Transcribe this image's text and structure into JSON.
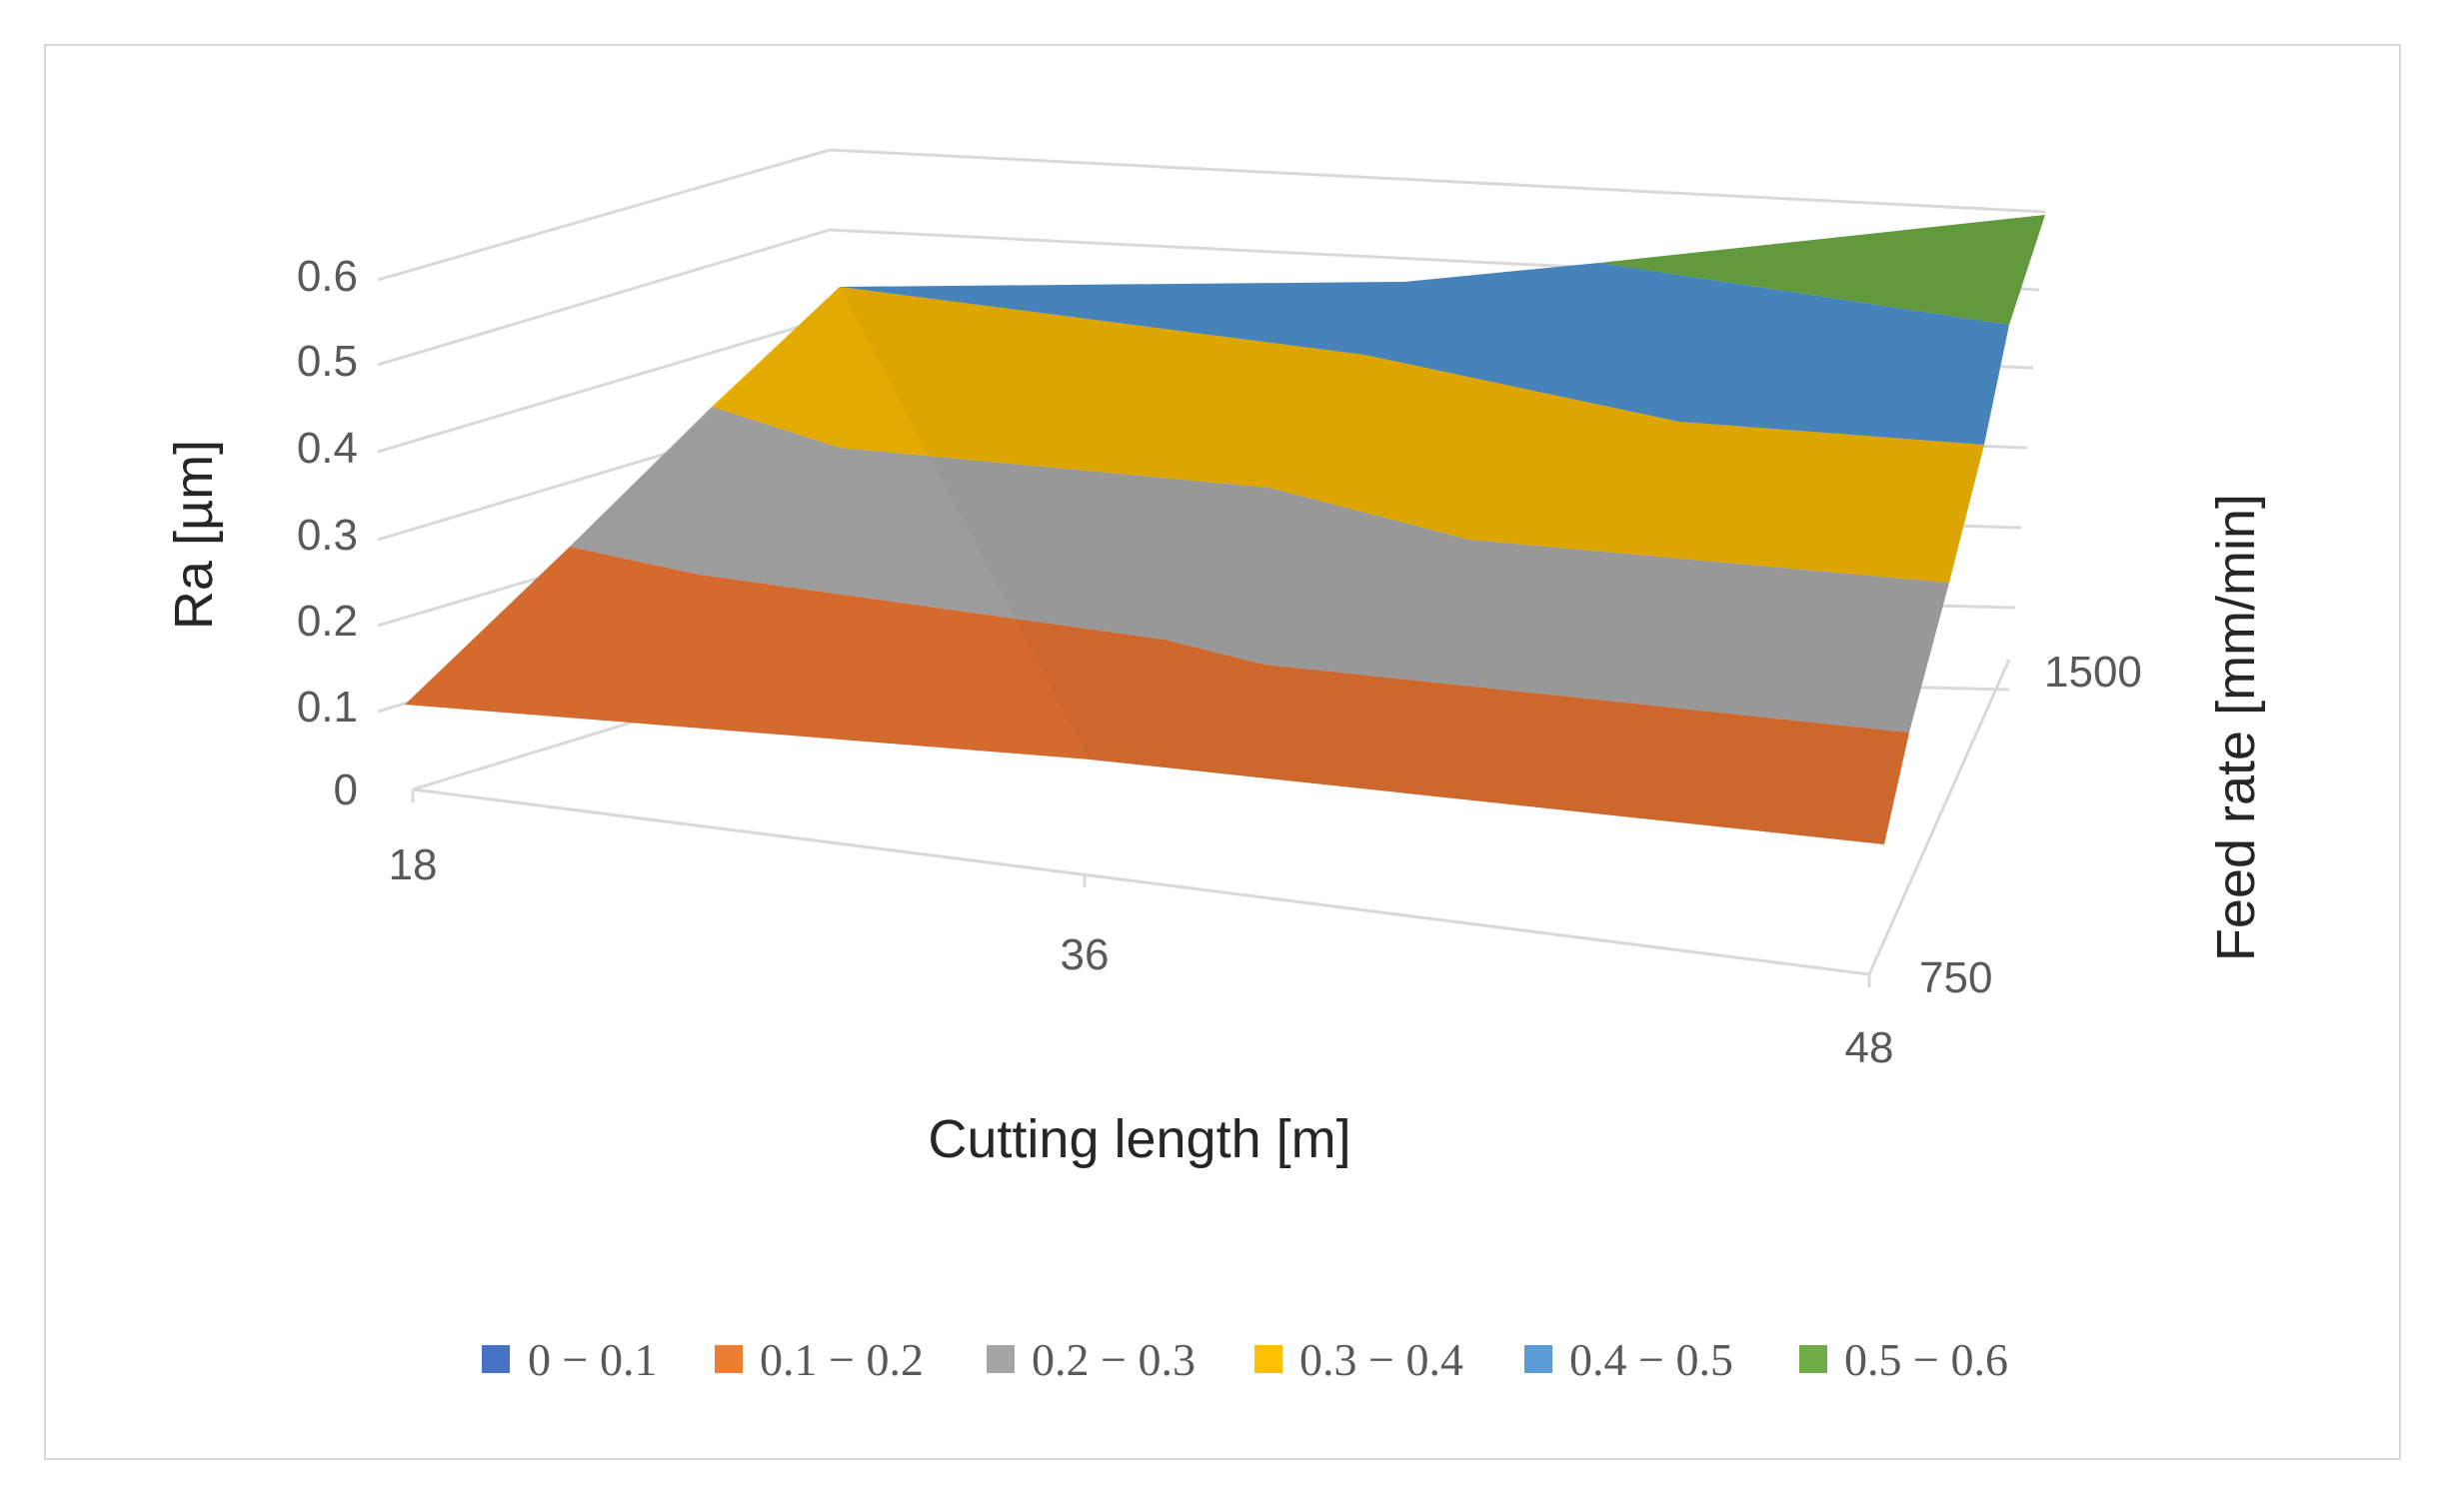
{
  "chart_data": {
    "type": "surface",
    "x_axis": {
      "title": "Cutting length [m]",
      "ticks": [
        "18",
        "36",
        "48"
      ]
    },
    "depth_axis": {
      "title": "Feed rate [mm/min]",
      "ticks": [
        "750",
        "1500"
      ]
    },
    "z_axis": {
      "title": "Ra [µm]",
      "range": [
        0,
        0.6
      ],
      "ticks": [
        "0",
        "0.1",
        "0.2",
        "0.3",
        "0.4",
        "0.5",
        "0.6"
      ]
    },
    "surface_values": [
      {
        "feed_rate": 750,
        "values": [
          0.12,
          0.13,
          0.15
        ]
      },
      {
        "feed_rate": 1500,
        "values": [
          0.46,
          0.51,
          0.62
        ]
      }
    ],
    "bands": [
      {
        "label": "0 − 0.1",
        "color": "#4472C4"
      },
      {
        "label": "0.1 − 0.2",
        "color": "#ED7D31"
      },
      {
        "label": "0.2 − 0.3",
        "color": "#A5A5A5"
      },
      {
        "label": "0.3 − 0.4",
        "color": "#FFC000"
      },
      {
        "label": "0.4 − 0.5",
        "color": "#5B9BD5"
      },
      {
        "label": "0.5 − 0.6",
        "color": "#70AD47"
      }
    ],
    "legend_position": "bottom"
  }
}
